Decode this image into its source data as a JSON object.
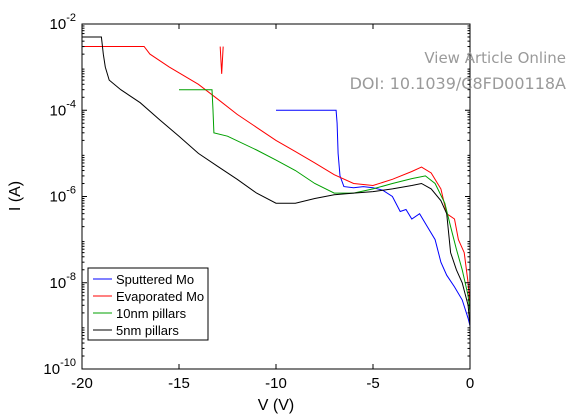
{
  "watermark": {
    "line1": "View Article Online",
    "line2": "DOI: 10.1039/C8FD00118A"
  },
  "chart_data": {
    "type": "line",
    "xlabel": "V (V)",
    "ylabel": "I (A)",
    "xlim": [
      -20,
      0
    ],
    "ylim": [
      1e-10,
      0.01
    ],
    "yscale": "log",
    "x_ticks": [
      -20,
      -15,
      -10,
      -5,
      0
    ],
    "x_tick_labels": [
      "-20",
      "-15",
      "-10",
      "-5",
      "0"
    ],
    "y_ticks": [
      1e-10,
      1e-08,
      1e-06,
      0.0001,
      0.01
    ],
    "y_tick_labels": [
      {
        "base": "10",
        "exp": "-10"
      },
      {
        "base": "10",
        "exp": "-8"
      },
      {
        "base": "10",
        "exp": "-6"
      },
      {
        "base": "10",
        "exp": "-4"
      },
      {
        "base": "10",
        "exp": "-2"
      }
    ],
    "grid": false,
    "legend_position": "bottom-left",
    "series": [
      {
        "name": "Sputtered Mo",
        "color": "#0000ff",
        "points": [
          [
            -10,
            0.0001
          ],
          [
            -6.9,
            0.0001
          ],
          [
            -6.85,
            5e-05
          ],
          [
            -6.8,
            1e-05
          ],
          [
            -6.7,
            3e-06
          ],
          [
            -6.5,
            1.7e-06
          ],
          [
            -6,
            1.6e-06
          ],
          [
            -5.5,
            1.7e-06
          ],
          [
            -5,
            1.6e-06
          ],
          [
            -4.5,
            1.4e-06
          ],
          [
            -4,
            1e-06
          ],
          [
            -3.6,
            4.5e-07
          ],
          [
            -3.3,
            5e-07
          ],
          [
            -3,
            3e-07
          ],
          [
            -2.6,
            4e-07
          ],
          [
            -2.2,
            2e-07
          ],
          [
            -1.8,
            1e-07
          ],
          [
            -1.5,
            3e-08
          ],
          [
            -1.2,
            1.5e-08
          ],
          [
            -0.8,
            8e-09
          ],
          [
            -0.4,
            4e-09
          ],
          [
            -0.1,
            1.5e-09
          ],
          [
            0,
            1e-09
          ],
          [
            0,
            0.0001
          ]
        ]
      },
      {
        "name": "Evaporated Mo",
        "color": "#ff0000",
        "points": [
          [
            -20,
            0.003
          ],
          [
            -16.8,
            0.003
          ],
          [
            -16.5,
            0.002
          ],
          [
            -15.5,
            0.001
          ],
          [
            -14,
            0.0004
          ],
          [
            -13,
            0.00018
          ],
          [
            -12,
            8e-05
          ],
          [
            -11,
            4e-05
          ],
          [
            -10,
            2e-05
          ],
          [
            -9,
            1.1e-05
          ],
          [
            -8,
            6e-06
          ],
          [
            -7,
            3.2e-06
          ],
          [
            -6,
            2e-06
          ],
          [
            -5,
            1.8e-06
          ],
          [
            -4,
            2.5e-06
          ],
          [
            -3,
            3.8e-06
          ],
          [
            -2.5,
            4.8e-06
          ],
          [
            -2,
            3.5e-06
          ],
          [
            -1.5,
            1.5e-06
          ],
          [
            -1.2,
            4e-07
          ],
          [
            -0.8,
            3e-07
          ],
          [
            -0.6,
            1e-07
          ],
          [
            -0.3,
            5e-08
          ],
          [
            -0.1,
            1e-08
          ],
          [
            0,
            3e-09
          ],
          [
            0,
            0.003
          ]
        ],
        "spike": {
          "x": -12.8,
          "base": 0.003,
          "min": 0.0007
        }
      },
      {
        "name": "10nm pillars",
        "color": "#00a000",
        "points": [
          [
            -15,
            0.0003
          ],
          [
            -13.3,
            0.0003
          ],
          [
            -13.25,
            0.0001
          ],
          [
            -13.2,
            3e-05
          ],
          [
            -12.5,
            2.5e-05
          ],
          [
            -11,
            1.2e-05
          ],
          [
            -10,
            7e-06
          ],
          [
            -9,
            4e-06
          ],
          [
            -8,
            2e-06
          ],
          [
            -7,
            1.2e-06
          ],
          [
            -6,
            1.2e-06
          ],
          [
            -5,
            1.5e-06
          ],
          [
            -4,
            2e-06
          ],
          [
            -3,
            2.6e-06
          ],
          [
            -2.3,
            3e-06
          ],
          [
            -1.8,
            2e-06
          ],
          [
            -1.3,
            7e-07
          ],
          [
            -1,
            2e-07
          ],
          [
            -0.7,
            6e-08
          ],
          [
            -0.4,
            2e-08
          ],
          [
            -0.1,
            5e-09
          ],
          [
            0,
            2e-09
          ],
          [
            0,
            0.0003
          ]
        ]
      },
      {
        "name": "5nm pillars",
        "color": "#000000",
        "points": [
          [
            -20,
            0.005
          ],
          [
            -19,
            0.005
          ],
          [
            -18.9,
            0.002
          ],
          [
            -18.8,
            0.001
          ],
          [
            -18.6,
            0.0005
          ],
          [
            -18,
            0.0003
          ],
          [
            -17,
            0.00015
          ],
          [
            -16,
            6e-05
          ],
          [
            -15,
            2.5e-05
          ],
          [
            -14,
            1e-05
          ],
          [
            -13,
            5e-06
          ],
          [
            -12,
            2.5e-06
          ],
          [
            -11,
            1.2e-06
          ],
          [
            -10,
            7e-07
          ],
          [
            -9,
            7e-07
          ],
          [
            -8,
            9e-07
          ],
          [
            -7,
            1.1e-06
          ],
          [
            -6,
            1.2e-06
          ],
          [
            -5,
            1.3e-06
          ],
          [
            -4,
            1.5e-06
          ],
          [
            -3,
            1.8e-06
          ],
          [
            -2.5,
            2e-06
          ],
          [
            -2,
            1.5e-06
          ],
          [
            -1.5,
            8e-07
          ],
          [
            -1.2,
            4e-07
          ],
          [
            -1,
            5e-08
          ],
          [
            -0.7,
            2e-08
          ],
          [
            -0.4,
            1e-08
          ],
          [
            -0.1,
            3e-09
          ],
          [
            0,
            1e-09
          ],
          [
            0,
            0.005
          ]
        ]
      }
    ]
  }
}
